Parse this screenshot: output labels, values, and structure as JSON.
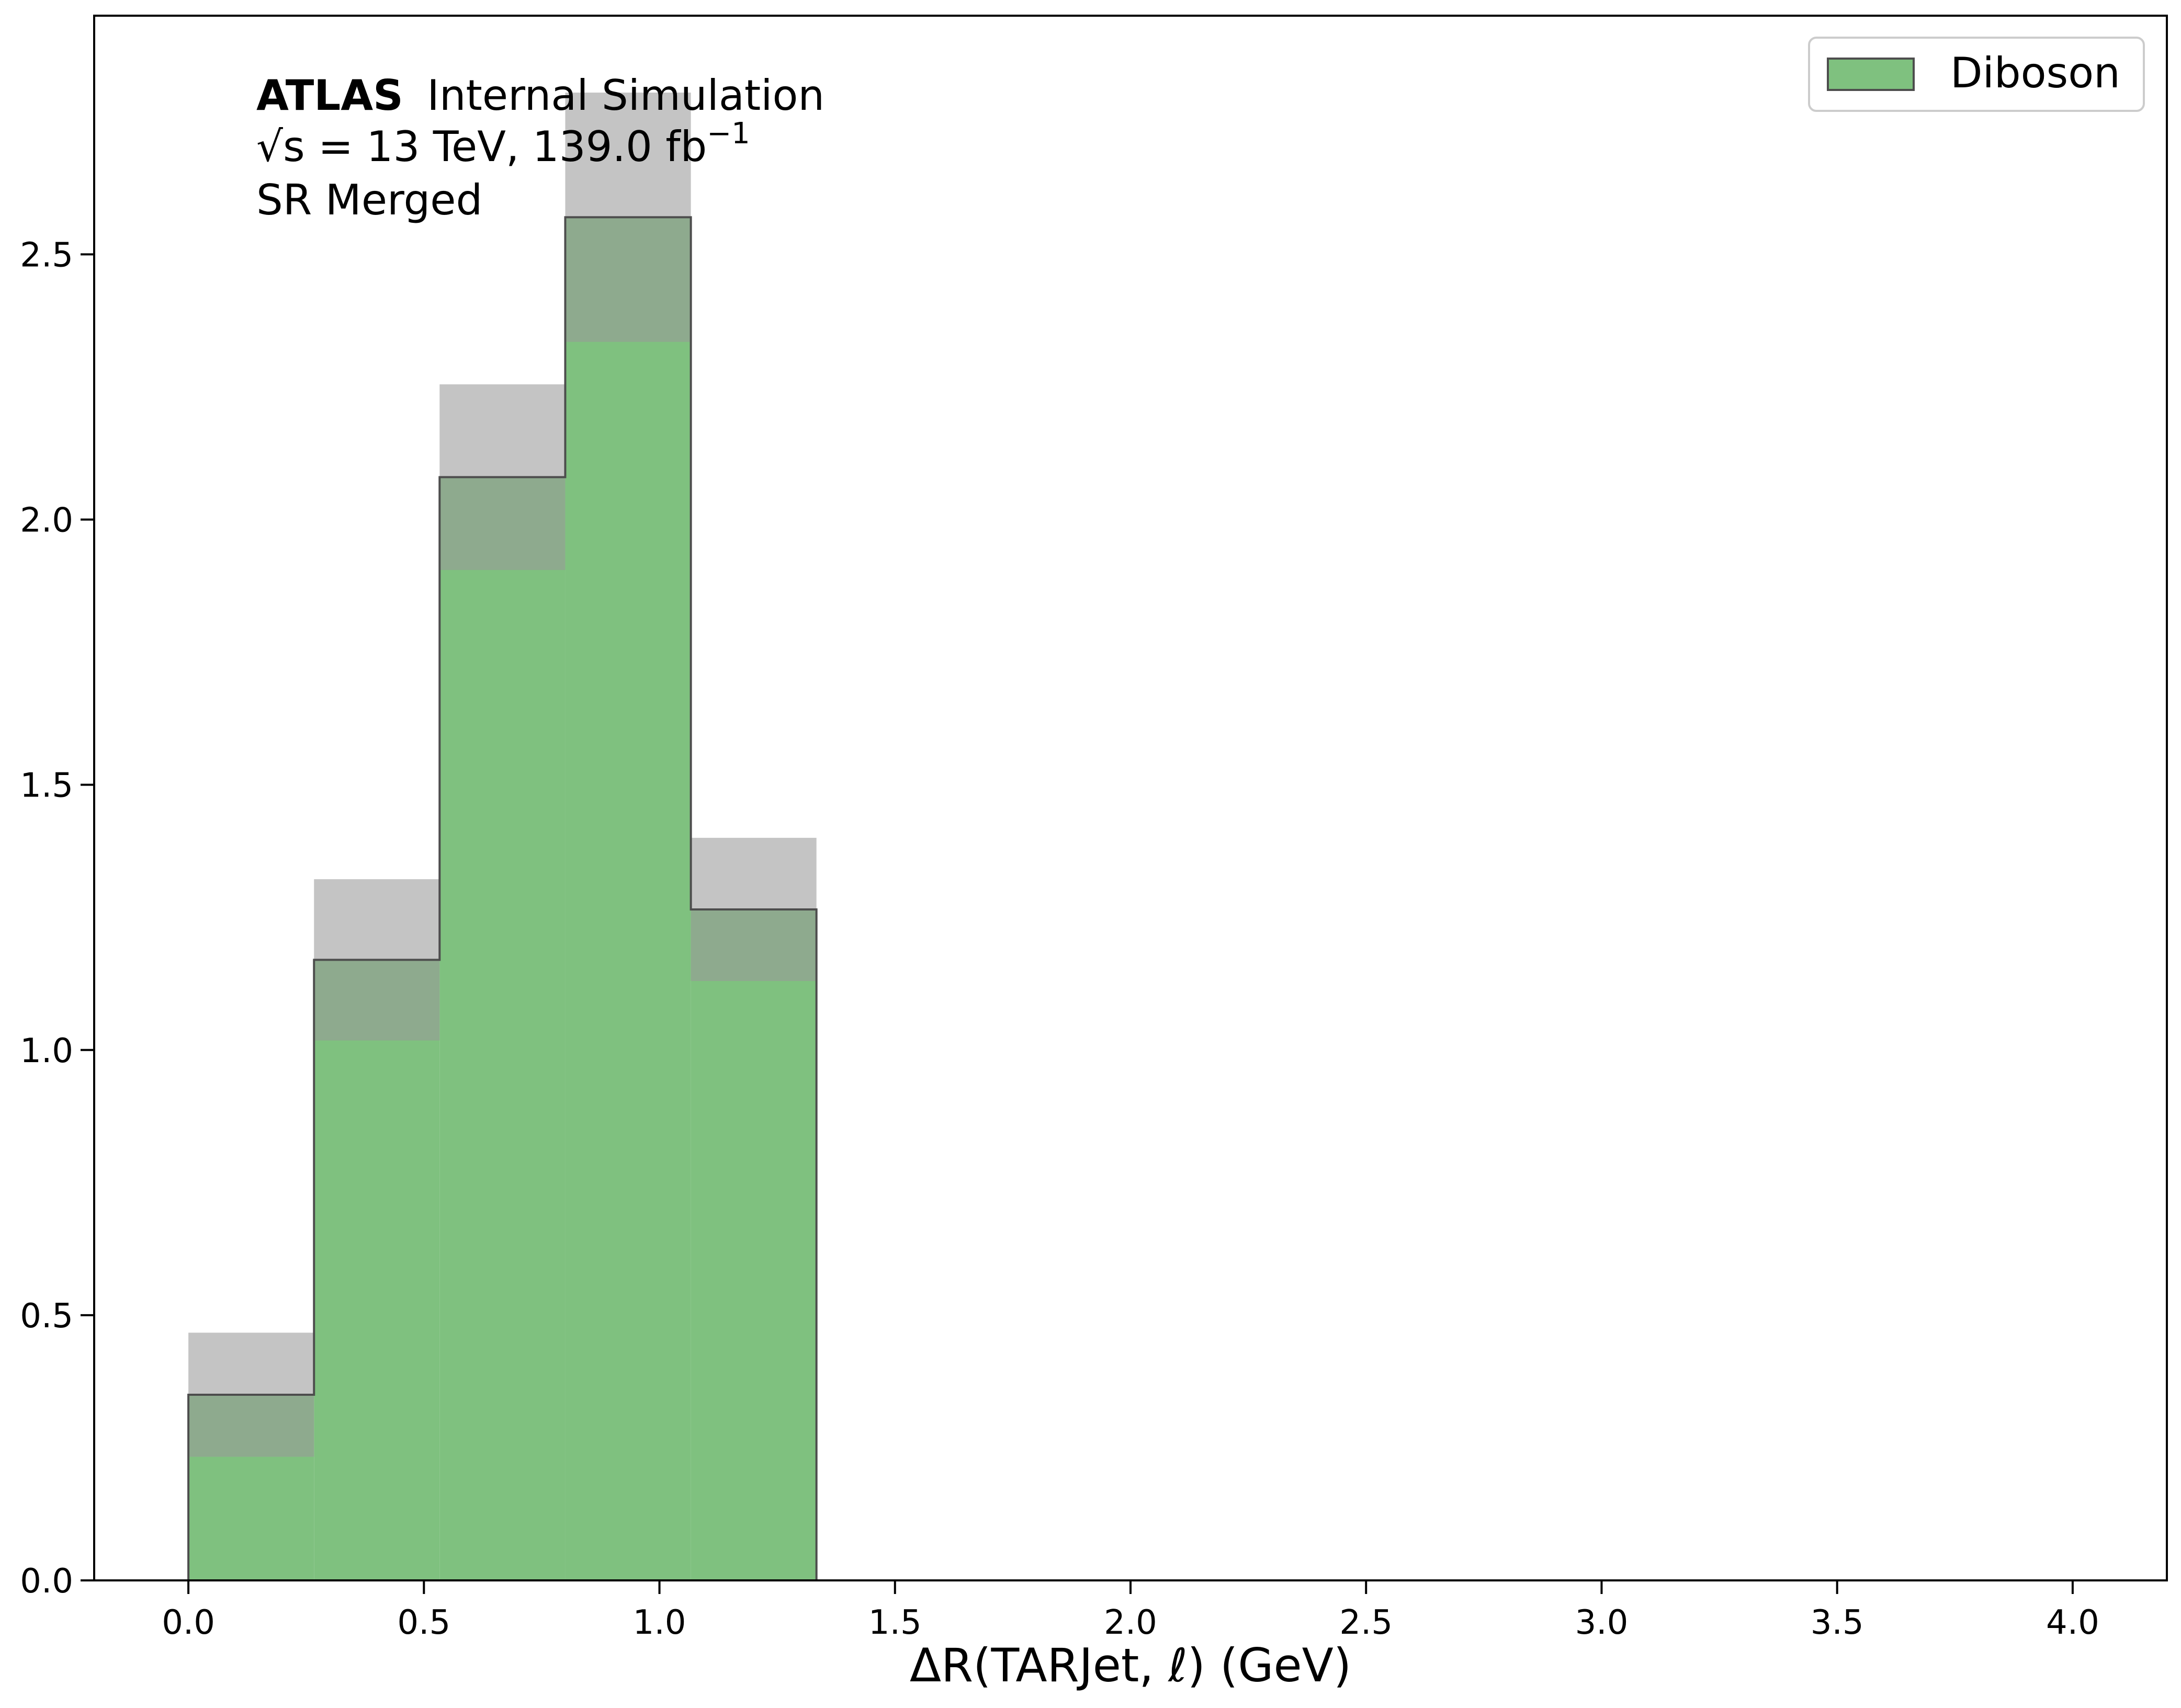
{
  "chart_data": {
    "type": "bar",
    "style": "histogram",
    "x_label": "ΔR(TARJet, ℓ) (GeV)",
    "y_label": "",
    "xlim": [
      -0.2,
      4.2
    ],
    "ylim": [
      0,
      2.95
    ],
    "x_ticks": [
      "0.0",
      "0.5",
      "1.0",
      "1.5",
      "2.0",
      "2.5",
      "3.0",
      "3.5",
      "4.0"
    ],
    "y_ticks": [
      "0.0",
      "0.5",
      "1.0",
      "1.5",
      "2.0",
      "2.5"
    ],
    "bin_edges": [
      0,
      0.2667,
      0.5333,
      0.8,
      1.0667,
      1.3333
    ],
    "series": [
      {
        "name": "Diboson",
        "color": "#7fc17f",
        "values": [
          0.35,
          1.17,
          2.08,
          2.57,
          1.265
        ],
        "uncertainty": [
          0.117,
          0.152,
          0.175,
          0.235,
          0.135
        ]
      }
    ],
    "uncertainty_color": "#999999",
    "legend_position": "top-right",
    "grid": false,
    "annotation": {
      "experiment": "ATLAS",
      "status": "Internal Simulation",
      "energy_prefix": "√s = 13 TeV, 139.0 fb",
      "energy_exponent": "−1",
      "region": "SR Merged"
    }
  }
}
